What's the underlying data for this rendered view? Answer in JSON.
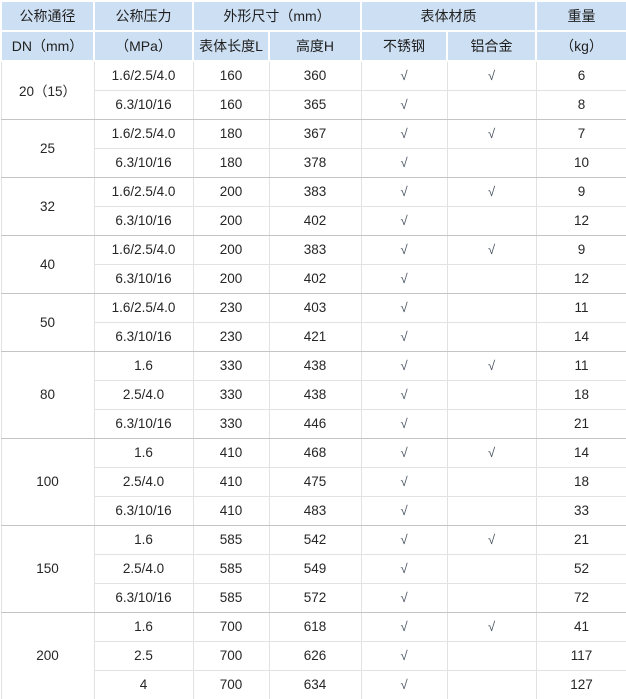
{
  "colors": {
    "header_bg": "#cddff2",
    "body_bg": "#ffffff",
    "grid_line": "#e2e2e2",
    "group_line": "#c4c4c4",
    "text": "#262626"
  },
  "table": {
    "check_mark": "√",
    "header": {
      "row1": [
        {
          "label": "公称通径",
          "colspan": 1
        },
        {
          "label": "公称压力",
          "colspan": 1
        },
        {
          "label": "外形尺寸（mm）",
          "colspan": 2
        },
        {
          "label": "表体材质",
          "colspan": 2
        },
        {
          "label": "重量",
          "colspan": 1
        }
      ],
      "row2": [
        "DN（mm）",
        "（MPa）",
        "表体长度L",
        "高度H",
        "不锈钢",
        "铝合金",
        "（kg）"
      ]
    },
    "groups": [
      {
        "dn": "20（15）",
        "rows": [
          {
            "pressure": "1.6/2.5/4.0",
            "length": "160",
            "height": "360",
            "stainless": true,
            "aluminum": true,
            "weight": "6"
          },
          {
            "pressure": "6.3/10/16",
            "length": "160",
            "height": "365",
            "stainless": true,
            "aluminum": false,
            "weight": "8"
          }
        ]
      },
      {
        "dn": "25",
        "rows": [
          {
            "pressure": "1.6/2.5/4.0",
            "length": "180",
            "height": "367",
            "stainless": true,
            "aluminum": true,
            "weight": "7"
          },
          {
            "pressure": "6.3/10/16",
            "length": "180",
            "height": "378",
            "stainless": true,
            "aluminum": false,
            "weight": "10"
          }
        ]
      },
      {
        "dn": "32",
        "rows": [
          {
            "pressure": "1.6/2.5/4.0",
            "length": "200",
            "height": "383",
            "stainless": true,
            "aluminum": true,
            "weight": "9"
          },
          {
            "pressure": "6.3/10/16",
            "length": "200",
            "height": "402",
            "stainless": true,
            "aluminum": false,
            "weight": "12"
          }
        ]
      },
      {
        "dn": "40",
        "rows": [
          {
            "pressure": "1.6/2.5/4.0",
            "length": "200",
            "height": "383",
            "stainless": true,
            "aluminum": true,
            "weight": "9"
          },
          {
            "pressure": "6.3/10/16",
            "length": "200",
            "height": "402",
            "stainless": true,
            "aluminum": false,
            "weight": "12"
          }
        ]
      },
      {
        "dn": "50",
        "rows": [
          {
            "pressure": "1.6/2.5/4.0",
            "length": "230",
            "height": "403",
            "stainless": true,
            "aluminum": false,
            "weight": "11"
          },
          {
            "pressure": "6.3/10/16",
            "length": "230",
            "height": "421",
            "stainless": true,
            "aluminum": false,
            "weight": "14"
          }
        ]
      },
      {
        "dn": "80",
        "rows": [
          {
            "pressure": "1.6",
            "length": "330",
            "height": "438",
            "stainless": true,
            "aluminum": true,
            "weight": "11"
          },
          {
            "pressure": "2.5/4.0",
            "length": "330",
            "height": "438",
            "stainless": true,
            "aluminum": false,
            "weight": "18"
          },
          {
            "pressure": "6.3/10/16",
            "length": "330",
            "height": "446",
            "stainless": true,
            "aluminum": false,
            "weight": "21"
          }
        ]
      },
      {
        "dn": "100",
        "rows": [
          {
            "pressure": "1.6",
            "length": "410",
            "height": "468",
            "stainless": true,
            "aluminum": true,
            "weight": "14"
          },
          {
            "pressure": "2.5/4.0",
            "length": "410",
            "height": "475",
            "stainless": true,
            "aluminum": false,
            "weight": "18"
          },
          {
            "pressure": "6.3/10/16",
            "length": "410",
            "height": "483",
            "stainless": true,
            "aluminum": false,
            "weight": "33"
          }
        ]
      },
      {
        "dn": "150",
        "rows": [
          {
            "pressure": "1.6",
            "length": "585",
            "height": "542",
            "stainless": true,
            "aluminum": true,
            "weight": "21"
          },
          {
            "pressure": "2.5/4.0",
            "length": "585",
            "height": "549",
            "stainless": true,
            "aluminum": false,
            "weight": "52"
          },
          {
            "pressure": "6.3/10/16",
            "length": "585",
            "height": "572",
            "stainless": true,
            "aluminum": false,
            "weight": "72"
          }
        ]
      },
      {
        "dn": "200",
        "rows": [
          {
            "pressure": "1.6",
            "length": "700",
            "height": "618",
            "stainless": true,
            "aluminum": true,
            "weight": "41"
          },
          {
            "pressure": "2.5",
            "length": "700",
            "height": "626",
            "stainless": true,
            "aluminum": false,
            "weight": "117"
          },
          {
            "pressure": "4",
            "length": "700",
            "height": "634",
            "stainless": true,
            "aluminum": false,
            "weight": "127"
          }
        ]
      }
    ]
  },
  "chart_data": {
    "type": "table",
    "title": "",
    "columns": [
      "公称通径 DN（mm）",
      "公称压力（MPa）",
      "外形尺寸（mm） 表体长度L",
      "外形尺寸（mm） 高度H",
      "表体材质 不锈钢",
      "表体材质 铝合金",
      "重量（kg）"
    ],
    "rows": [
      [
        "20（15）",
        "1.6/2.5/4.0",
        "160",
        "360",
        "√",
        "√",
        "6"
      ],
      [
        "20（15）",
        "6.3/10/16",
        "160",
        "365",
        "√",
        "",
        "8"
      ],
      [
        "25",
        "1.6/2.5/4.0",
        "180",
        "367",
        "√",
        "√",
        "7"
      ],
      [
        "25",
        "6.3/10/16",
        "180",
        "378",
        "√",
        "",
        "10"
      ],
      [
        "32",
        "1.6/2.5/4.0",
        "200",
        "383",
        "√",
        "√",
        "9"
      ],
      [
        "32",
        "6.3/10/16",
        "200",
        "402",
        "√",
        "",
        "12"
      ],
      [
        "40",
        "1.6/2.5/4.0",
        "200",
        "383",
        "√",
        "√",
        "9"
      ],
      [
        "40",
        "6.3/10/16",
        "200",
        "402",
        "√",
        "",
        "12"
      ],
      [
        "50",
        "1.6/2.5/4.0",
        "230",
        "403",
        "√",
        "",
        "11"
      ],
      [
        "50",
        "6.3/10/16",
        "230",
        "421",
        "√",
        "",
        "14"
      ],
      [
        "80",
        "1.6",
        "330",
        "438",
        "√",
        "√",
        "11"
      ],
      [
        "80",
        "2.5/4.0",
        "330",
        "438",
        "√",
        "",
        "18"
      ],
      [
        "80",
        "6.3/10/16",
        "330",
        "446",
        "√",
        "",
        "21"
      ],
      [
        "100",
        "1.6",
        "410",
        "468",
        "√",
        "√",
        "14"
      ],
      [
        "100",
        "2.5/4.0",
        "410",
        "475",
        "√",
        "",
        "18"
      ],
      [
        "100",
        "6.3/10/16",
        "410",
        "483",
        "√",
        "",
        "33"
      ],
      [
        "150",
        "1.6",
        "585",
        "542",
        "√",
        "√",
        "21"
      ],
      [
        "150",
        "2.5/4.0",
        "585",
        "549",
        "√",
        "",
        "52"
      ],
      [
        "150",
        "6.3/10/16",
        "585",
        "572",
        "√",
        "",
        "72"
      ],
      [
        "200",
        "1.6",
        "700",
        "618",
        "√",
        "√",
        "41"
      ],
      [
        "200",
        "2.5",
        "700",
        "626",
        "√",
        "",
        "117"
      ],
      [
        "200",
        "4",
        "700",
        "634",
        "√",
        "",
        "127"
      ]
    ]
  }
}
